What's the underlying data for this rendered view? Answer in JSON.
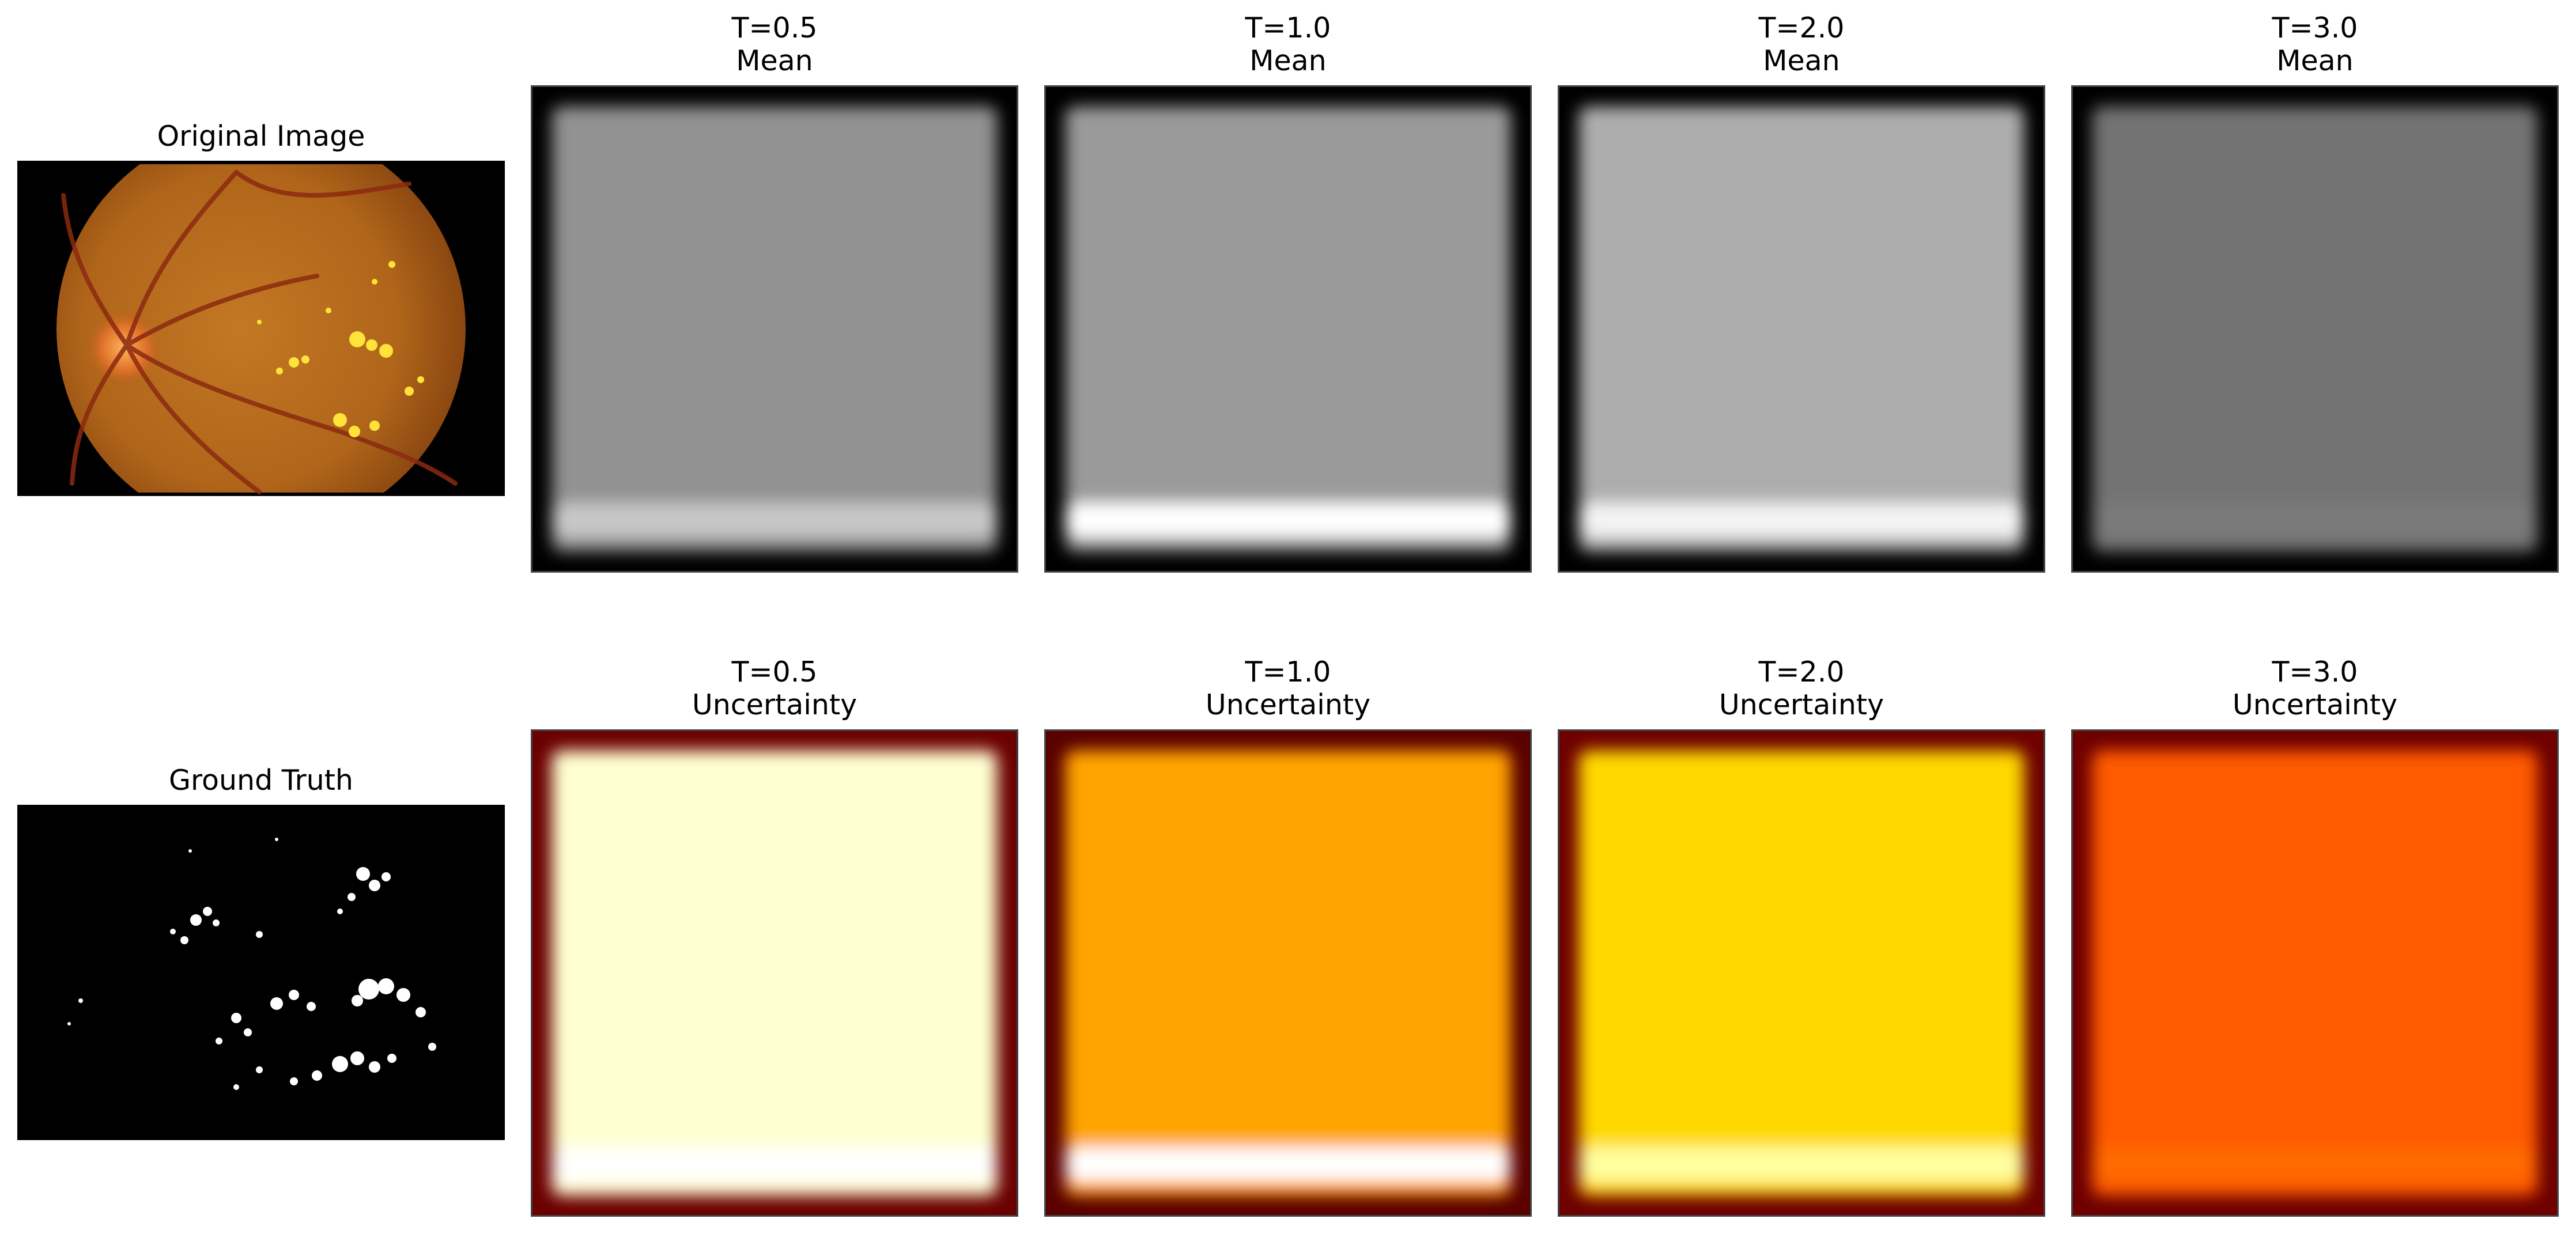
{
  "left_column": {
    "original_title": "Original Image",
    "ground_truth_title": "Ground Truth"
  },
  "rows": [
    {
      "name": "Mean",
      "colormap": "gray",
      "panels": [
        {
          "t_label": "T=0.5",
          "sub_label": "Mean",
          "center_color": "#929292",
          "edge_color": "#000000",
          "band_color": "#c8c8c8"
        },
        {
          "t_label": "T=1.0",
          "sub_label": "Mean",
          "center_color": "#9a9a9a",
          "edge_color": "#000000",
          "band_color": "#ffffff"
        },
        {
          "t_label": "T=2.0",
          "sub_label": "Mean",
          "center_color": "#adadad",
          "edge_color": "#000000",
          "band_color": "#f4f4f4"
        },
        {
          "t_label": "T=3.0",
          "sub_label": "Mean",
          "center_color": "#737373",
          "edge_color": "#000000",
          "band_color": "#7a7a7a"
        }
      ]
    },
    {
      "name": "Uncertainty",
      "colormap": "hot",
      "panels": [
        {
          "t_label": "T=0.5",
          "sub_label": "Uncertainty",
          "center_color": "#ffffd2",
          "edge_color": "#6b0000",
          "band_color": "#ffffff"
        },
        {
          "t_label": "T=1.0",
          "sub_label": "Uncertainty",
          "center_color": "#ffa400",
          "edge_color": "#5a0000",
          "band_color": "#ffffff"
        },
        {
          "t_label": "T=2.0",
          "sub_label": "Uncertainty",
          "center_color": "#ffd800",
          "edge_color": "#6e0000",
          "band_color": "#ffffa0"
        },
        {
          "t_label": "T=3.0",
          "sub_label": "Uncertainty",
          "center_color": "#ff5a00",
          "edge_color": "#6e0000",
          "band_color": "#ff6a00"
        }
      ]
    }
  ]
}
